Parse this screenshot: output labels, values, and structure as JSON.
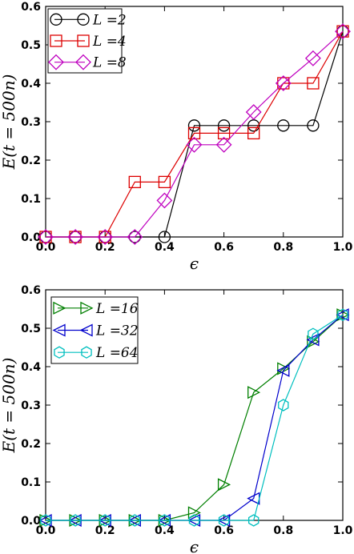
{
  "chart_data": [
    {
      "type": "line",
      "title": "",
      "xlabel": "ϵ",
      "ylabel": "E(t = 500n)",
      "xlim": [
        0.0,
        1.0
      ],
      "ylim": [
        0.0,
        0.6
      ],
      "xticks": [
        "0.0",
        "0.2",
        "0.4",
        "0.6",
        "0.8",
        "1.0"
      ],
      "yticks": [
        "0.0",
        "0.1",
        "0.2",
        "0.3",
        "0.4",
        "0.5",
        "0.6"
      ],
      "grid": false,
      "legend": "top-left",
      "series": [
        {
          "name": "L =2",
          "color": "#000000",
          "marker": "circle",
          "x": [
            0.0,
            0.1,
            0.2,
            0.3,
            0.4,
            0.5,
            0.6,
            0.7,
            0.8,
            0.9,
            1.0
          ],
          "y": [
            0.0,
            0.0,
            0.0,
            0.0,
            0.0,
            0.29,
            0.29,
            0.29,
            0.29,
            0.29,
            0.535
          ]
        },
        {
          "name": "L =4",
          "color": "#dd0000",
          "marker": "square",
          "x": [
            0.0,
            0.1,
            0.2,
            0.3,
            0.4,
            0.5,
            0.6,
            0.7,
            0.8,
            0.9,
            1.0
          ],
          "y": [
            0.0,
            0.0,
            0.0,
            0.143,
            0.143,
            0.27,
            0.27,
            0.27,
            0.4,
            0.4,
            0.535
          ]
        },
        {
          "name": "L =8",
          "color": "#bf00bf",
          "marker": "diamond",
          "x": [
            0.0,
            0.1,
            0.2,
            0.3,
            0.4,
            0.5,
            0.6,
            0.7,
            0.8,
            0.9,
            1.0
          ],
          "y": [
            0.0,
            0.0,
            0.0,
            0.0,
            0.095,
            0.24,
            0.24,
            0.325,
            0.4,
            0.465,
            0.535
          ]
        }
      ]
    },
    {
      "type": "line",
      "title": "",
      "xlabel": "ϵ",
      "ylabel": "E(t = 500n)",
      "xlim": [
        0.0,
        1.0
      ],
      "ylim": [
        0.0,
        0.6
      ],
      "xticks": [
        "0.0",
        "0.2",
        "0.4",
        "0.6",
        "0.8",
        "1.0"
      ],
      "yticks": [
        "0.0",
        "0.1",
        "0.2",
        "0.3",
        "0.4",
        "0.5",
        "0.6"
      ],
      "grid": false,
      "legend": "top-left",
      "series": [
        {
          "name": "L =16",
          "color": "#007f00",
          "marker": "triangle-right",
          "x": [
            0.0,
            0.1,
            0.2,
            0.3,
            0.4,
            0.5,
            0.6,
            0.7,
            0.8,
            0.9,
            1.0
          ],
          "y": [
            0.0,
            0.0,
            0.0,
            0.0,
            0.0,
            0.02,
            0.093,
            0.333,
            0.395,
            0.465,
            0.535
          ]
        },
        {
          "name": "L =32",
          "color": "#0000cc",
          "marker": "triangle-left",
          "x": [
            0.0,
            0.1,
            0.2,
            0.3,
            0.4,
            0.5,
            0.6,
            0.7,
            0.8,
            0.9,
            1.0
          ],
          "y": [
            0.0,
            0.0,
            0.0,
            0.0,
            0.0,
            0.0,
            0.0,
            0.057,
            0.39,
            0.47,
            0.535
          ]
        },
        {
          "name": "L =64",
          "color": "#00bfbf",
          "marker": "hexagon",
          "x": [
            0.0,
            0.1,
            0.2,
            0.3,
            0.4,
            0.5,
            0.6,
            0.7,
            0.8,
            0.9,
            1.0
          ],
          "y": [
            0.0,
            0.0,
            0.0,
            0.0,
            0.0,
            0.0,
            0.0,
            0.0,
            0.3,
            0.485,
            0.535
          ]
        }
      ]
    }
  ]
}
